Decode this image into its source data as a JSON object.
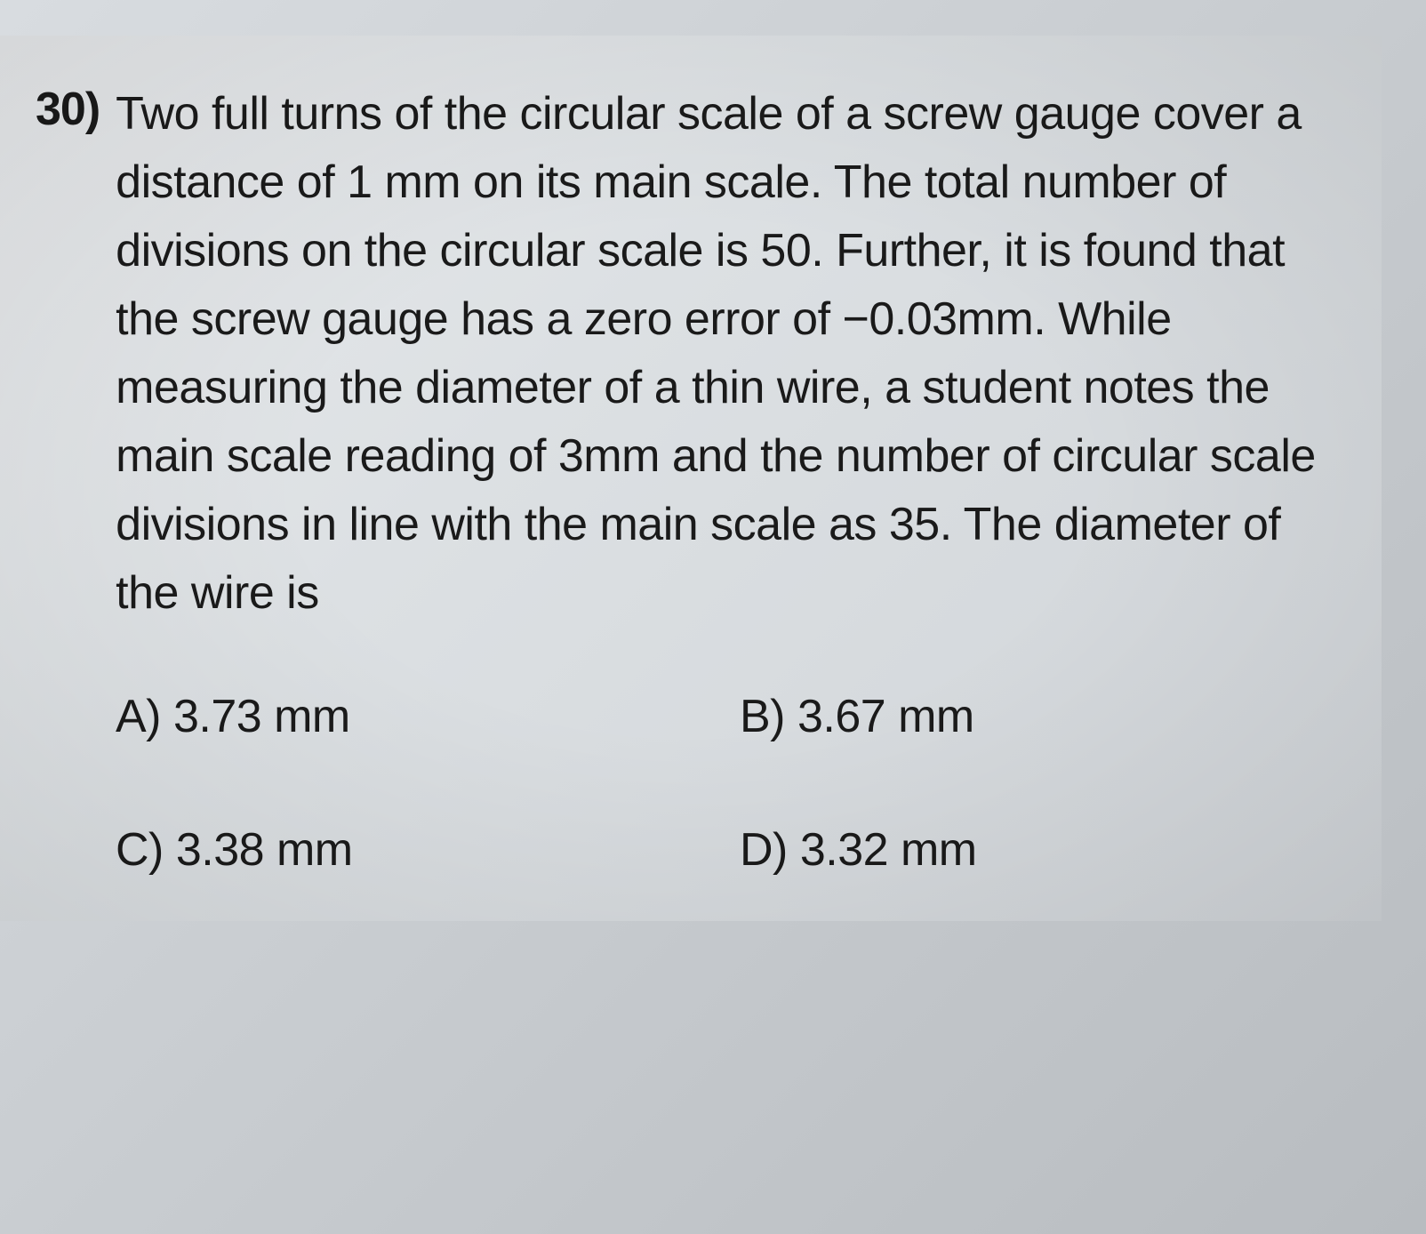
{
  "question": {
    "number": "30)",
    "text": "Two full turns of the circular scale of a screw gauge cover a distance of 1 mm on its main scale. The total number of divisions on the circular scale is 50. Further, it is found that the screw gauge has a zero error of −0.03mm. While measuring the diameter of a thin wire, a student notes the main scale reading of 3mm and the number of circular scale divisions in line with the main scale as 35. The diameter of the wire is"
  },
  "options": {
    "a": {
      "label": "A)",
      "value": "3.73 mm"
    },
    "b": {
      "label": "B)",
      "value": "3.67 mm"
    },
    "c": {
      "label": "C)",
      "value": "3.38 mm"
    },
    "d": {
      "label": "D)",
      "value": "3.32 mm"
    }
  },
  "styling": {
    "page_bg_start": "#e8eaec",
    "page_bg_end": "#d0d4d8",
    "text_color": "#1a1a1a",
    "question_fontsize": 52,
    "option_fontsize": 52,
    "line_height": 1.48
  }
}
